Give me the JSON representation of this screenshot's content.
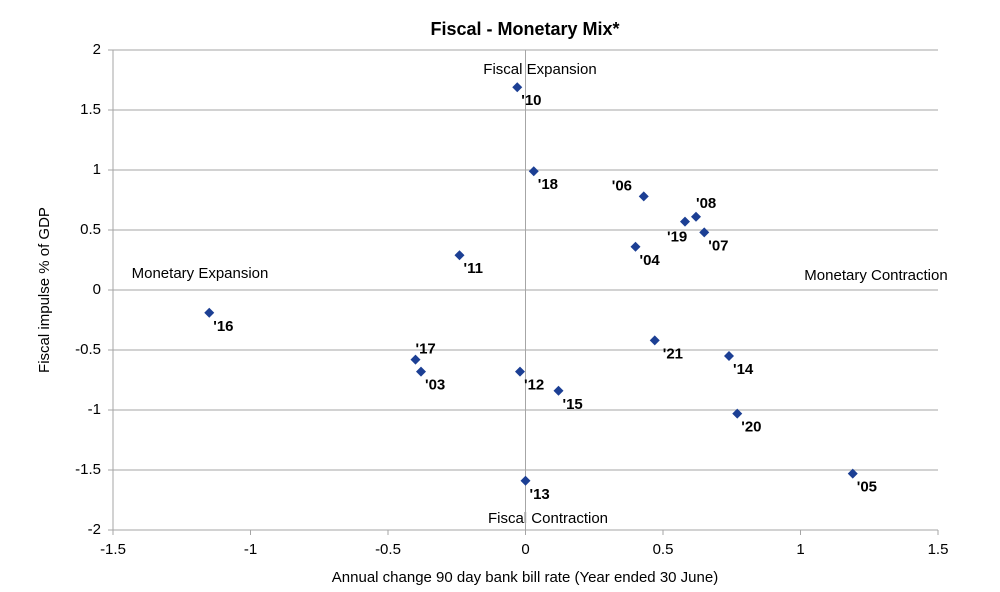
{
  "chart_data": {
    "type": "scatter",
    "title": "Fiscal - Monetary Mix*",
    "xlabel": "Annual  change 90 day bank bill rate (Year ended 30 June)",
    "ylabel": "Fiscal impulse  % of GDP",
    "annotations": {
      "top": "Fiscal Expansion",
      "bottom": "Fiscal Contraction",
      "left": "Monetary Expansion",
      "right": "Monetary Contraction"
    },
    "labels": [
      "'10",
      "'18",
      "'06",
      "'08",
      "'19",
      "'07",
      "'04",
      "'11",
      "'16",
      "'21",
      "'14",
      "'17",
      "'03",
      "'12",
      "'15",
      "'20",
      "'05",
      "'13"
    ],
    "x": [
      -0.03,
      0.03,
      0.43,
      0.62,
      0.58,
      0.65,
      0.4,
      -0.24,
      -1.15,
      0.47,
      0.74,
      -0.4,
      -0.38,
      -0.02,
      0.12,
      0.77,
      1.19,
      0.0
    ],
    "values": [
      1.69,
      0.99,
      0.78,
      0.61,
      0.57,
      0.48,
      0.36,
      0.29,
      -0.19,
      -0.42,
      -0.55,
      -0.58,
      -0.68,
      -0.68,
      -0.84,
      -1.03,
      -1.53,
      -1.59
    ],
    "label_colors": [
      "#000000",
      "#6cc4ee",
      "#000000",
      "#000000",
      "#6cc4ee",
      "#000000",
      "#000000",
      "#000000",
      "#000000",
      "#6cc4ee",
      "#000000",
      "#6cc4ee",
      "#000000",
      "#000000",
      "#000000",
      "#6cc4ee",
      "#000000",
      "#000000"
    ],
    "color": "#1c3f94",
    "xlim": [
      -1.5,
      1.5
    ],
    "xticks": [
      -1.5,
      -1,
      -0.5,
      0,
      0.5,
      1,
      1.5
    ],
    "ylim": [
      -2,
      2
    ],
    "yticks": [
      -2,
      -1.5,
      -1,
      -0.5,
      0,
      0.5,
      1,
      1.5,
      2
    ],
    "grid": true
  }
}
